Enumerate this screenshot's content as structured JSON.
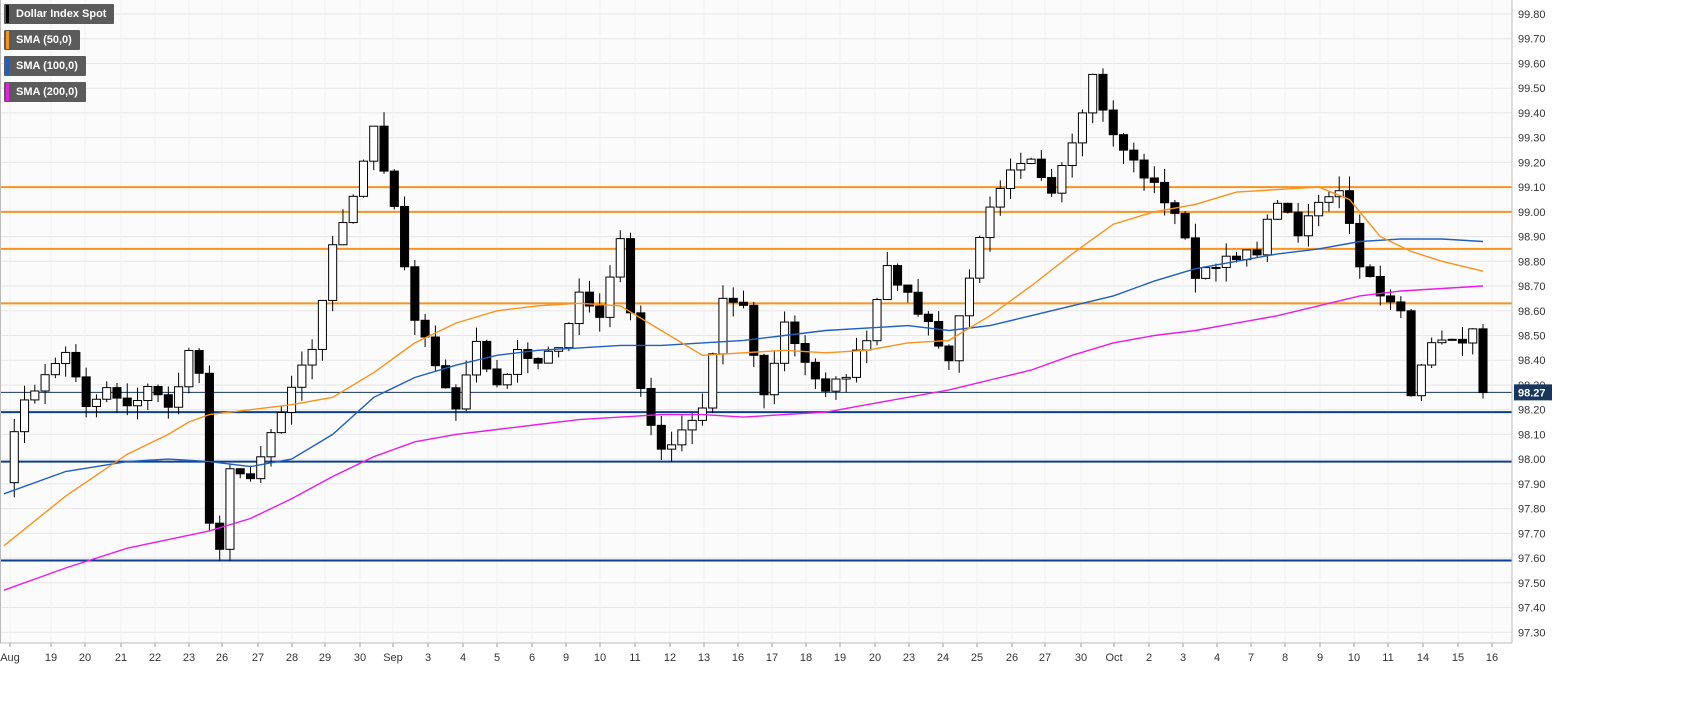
{
  "colors": {
    "background": "#ffffff",
    "grid": "#e6e6e6",
    "resistance": "#f7931e",
    "support": "#0d3f8f",
    "sma50": "#f7931e",
    "sma100": "#1f5fbf",
    "sma200": "#e61ee6",
    "candle_up": "#ffffff",
    "candle_down": "#000000",
    "badge": "#17375e"
  },
  "legend": [
    {
      "label": "Dollar Index Spot",
      "color": "#000000"
    },
    {
      "label": "SMA (50,0)",
      "color": "#f7931e"
    },
    {
      "label": "SMA (100,0)",
      "color": "#1f5fbf"
    },
    {
      "label": "SMA (200,0)",
      "color": "#e61ee6"
    }
  ],
  "chart_data": {
    "type": "candlestick",
    "title": "Dollar Index Spot",
    "y_ticks": [
      "99.80",
      "99.70",
      "99.60",
      "99.50",
      "99.40",
      "99.30",
      "99.20",
      "99.10",
      "99.00",
      "98.90",
      "98.80",
      "98.70",
      "98.60",
      "98.50",
      "98.40",
      "98.30",
      "98.20",
      "98.10",
      "98.00",
      "97.90",
      "97.80",
      "97.70",
      "97.60",
      "97.50",
      "97.40",
      "97.30"
    ],
    "x_ticks": [
      "Aug",
      "19",
      "20",
      "21",
      "22",
      "23",
      "26",
      "27",
      "28",
      "29",
      "30",
      "Sep",
      "3",
      "4",
      "5",
      "6",
      "9",
      "10",
      "11",
      "12",
      "13",
      "16",
      "17",
      "18",
      "19",
      "20",
      "23",
      "24",
      "25",
      "26",
      "27",
      "30",
      "Oct",
      "2",
      "3",
      "4",
      "7",
      "8",
      "9",
      "10",
      "11",
      "14",
      "15",
      "16"
    ],
    "current_price": "98.27",
    "ylim": [
      97.3,
      99.8
    ],
    "horizontal_levels": {
      "resistance": [
        99.1,
        99.0,
        98.85,
        98.63
      ],
      "support": [
        98.19,
        97.99,
        97.59
      ]
    },
    "anchors": [
      {
        "x": 0,
        "v": 97.93
      },
      {
        "x": 1,
        "v": 98.25
      },
      {
        "x": 2,
        "v": 98.33
      },
      {
        "x": 3,
        "v": 98.44
      },
      {
        "x": 4,
        "v": 98.2
      },
      {
        "x": 5,
        "v": 98.28
      },
      {
        "x": 6,
        "v": 98.2
      },
      {
        "x": 7,
        "v": 98.3
      },
      {
        "x": 8,
        "v": 98.2
      },
      {
        "x": 9,
        "v": 98.43
      },
      {
        "x": 9.8,
        "v": 98.3
      },
      {
        "x": 10,
        "v": 97.72
      },
      {
        "x": 10.5,
        "v": 97.62
      },
      {
        "x": 11,
        "v": 97.98
      },
      {
        "x": 12,
        "v": 97.9
      },
      {
        "x": 13,
        "v": 98.1
      },
      {
        "x": 14,
        "v": 98.27
      },
      {
        "x": 15,
        "v": 98.45
      },
      {
        "x": 16,
        "v": 98.85
      },
      {
        "x": 17,
        "v": 99.08
      },
      {
        "x": 18,
        "v": 99.35
      },
      {
        "x": 19,
        "v": 99.0
      },
      {
        "x": 20,
        "v": 98.55
      },
      {
        "x": 21,
        "v": 98.4
      },
      {
        "x": 22,
        "v": 98.2
      },
      {
        "x": 23,
        "v": 98.48
      },
      {
        "x": 24,
        "v": 98.28
      },
      {
        "x": 25,
        "v": 98.45
      },
      {
        "x": 26,
        "v": 98.38
      },
      {
        "x": 27,
        "v": 98.45
      },
      {
        "x": 28,
        "v": 98.68
      },
      {
        "x": 29,
        "v": 98.58
      },
      {
        "x": 30,
        "v": 98.9
      },
      {
        "x": 31,
        "v": 98.28
      },
      {
        "x": 32,
        "v": 98.02
      },
      {
        "x": 33,
        "v": 98.1
      },
      {
        "x": 34,
        "v": 98.2
      },
      {
        "x": 35,
        "v": 98.65
      },
      {
        "x": 36,
        "v": 98.6
      },
      {
        "x": 37,
        "v": 98.25
      },
      {
        "x": 38,
        "v": 98.55
      },
      {
        "x": 39,
        "v": 98.4
      },
      {
        "x": 40,
        "v": 98.26
      },
      {
        "x": 41,
        "v": 98.35
      },
      {
        "x": 42,
        "v": 98.5
      },
      {
        "x": 43,
        "v": 98.8
      },
      {
        "x": 44,
        "v": 98.65
      },
      {
        "x": 45,
        "v": 98.55
      },
      {
        "x": 46,
        "v": 98.4
      },
      {
        "x": 47,
        "v": 98.75
      },
      {
        "x": 48,
        "v": 99.0
      },
      {
        "x": 49,
        "v": 99.15
      },
      {
        "x": 50,
        "v": 99.2
      },
      {
        "x": 51,
        "v": 99.1
      },
      {
        "x": 52,
        "v": 99.3
      },
      {
        "x": 53,
        "v": 99.55
      },
      {
        "x": 54,
        "v": 99.3
      },
      {
        "x": 55,
        "v": 99.2
      },
      {
        "x": 56,
        "v": 99.1
      },
      {
        "x": 57,
        "v": 99.0
      },
      {
        "x": 58,
        "v": 98.75
      },
      {
        "x": 59,
        "v": 98.8
      },
      {
        "x": 60,
        "v": 98.8
      },
      {
        "x": 61,
        "v": 98.85
      },
      {
        "x": 62,
        "v": 99.05
      },
      {
        "x": 63,
        "v": 98.9
      },
      {
        "x": 64,
        "v": 99.05
      },
      {
        "x": 65,
        "v": 99.1
      },
      {
        "x": 66,
        "v": 98.8
      },
      {
        "x": 67,
        "v": 98.65
      },
      {
        "x": 68,
        "v": 98.6
      },
      {
        "x": 68.5,
        "v": 98.28
      },
      {
        "x": 69,
        "v": 98.4
      },
      {
        "x": 70,
        "v": 98.5
      },
      {
        "x": 71,
        "v": 98.45
      },
      {
        "x": 71.5,
        "v": 98.55
      },
      {
        "x": 72,
        "v": 98.25
      }
    ],
    "sma50": [
      {
        "x": 0,
        "v": 97.65
      },
      {
        "x": 3,
        "v": 97.85
      },
      {
        "x": 6,
        "v": 98.02
      },
      {
        "x": 8,
        "v": 98.1
      },
      {
        "x": 9,
        "v": 98.15
      },
      {
        "x": 10,
        "v": 98.18
      },
      {
        "x": 12,
        "v": 98.2
      },
      {
        "x": 14,
        "v": 98.22
      },
      {
        "x": 16,
        "v": 98.25
      },
      {
        "x": 18,
        "v": 98.35
      },
      {
        "x": 20,
        "v": 98.47
      },
      {
        "x": 22,
        "v": 98.55
      },
      {
        "x": 24,
        "v": 98.6
      },
      {
        "x": 26,
        "v": 98.62
      },
      {
        "x": 28,
        "v": 98.63
      },
      {
        "x": 30,
        "v": 98.62
      },
      {
        "x": 32,
        "v": 98.52
      },
      {
        "x": 34,
        "v": 98.42
      },
      {
        "x": 36,
        "v": 98.43
      },
      {
        "x": 38,
        "v": 98.44
      },
      {
        "x": 40,
        "v": 98.43
      },
      {
        "x": 42,
        "v": 98.44
      },
      {
        "x": 44,
        "v": 98.47
      },
      {
        "x": 46,
        "v": 98.48
      },
      {
        "x": 48,
        "v": 98.58
      },
      {
        "x": 50,
        "v": 98.7
      },
      {
        "x": 52,
        "v": 98.83
      },
      {
        "x": 54,
        "v": 98.95
      },
      {
        "x": 56,
        "v": 99.0
      },
      {
        "x": 58,
        "v": 99.03
      },
      {
        "x": 60,
        "v": 99.08
      },
      {
        "x": 62,
        "v": 99.09
      },
      {
        "x": 64,
        "v": 99.1
      },
      {
        "x": 65.5,
        "v": 99.05
      },
      {
        "x": 67,
        "v": 98.9
      },
      {
        "x": 68.5,
        "v": 98.84
      },
      {
        "x": 70,
        "v": 98.8
      },
      {
        "x": 72,
        "v": 98.76
      }
    ],
    "sma100": [
      {
        "x": 0,
        "v": 97.86
      },
      {
        "x": 3,
        "v": 97.95
      },
      {
        "x": 6,
        "v": 97.99
      },
      {
        "x": 8,
        "v": 98.0
      },
      {
        "x": 10,
        "v": 97.99
      },
      {
        "x": 12,
        "v": 97.97
      },
      {
        "x": 14,
        "v": 98.0
      },
      {
        "x": 16,
        "v": 98.1
      },
      {
        "x": 18,
        "v": 98.25
      },
      {
        "x": 20,
        "v": 98.33
      },
      {
        "x": 22,
        "v": 98.38
      },
      {
        "x": 24,
        "v": 98.42
      },
      {
        "x": 26,
        "v": 98.44
      },
      {
        "x": 28,
        "v": 98.45
      },
      {
        "x": 30,
        "v": 98.46
      },
      {
        "x": 32,
        "v": 98.46
      },
      {
        "x": 34,
        "v": 98.47
      },
      {
        "x": 36,
        "v": 98.48
      },
      {
        "x": 38,
        "v": 98.5
      },
      {
        "x": 40,
        "v": 98.52
      },
      {
        "x": 42,
        "v": 98.53
      },
      {
        "x": 44,
        "v": 98.54
      },
      {
        "x": 46,
        "v": 98.52
      },
      {
        "x": 48,
        "v": 98.54
      },
      {
        "x": 50,
        "v": 98.58
      },
      {
        "x": 52,
        "v": 98.62
      },
      {
        "x": 54,
        "v": 98.66
      },
      {
        "x": 56,
        "v": 98.72
      },
      {
        "x": 58,
        "v": 98.77
      },
      {
        "x": 60,
        "v": 98.8
      },
      {
        "x": 62,
        "v": 98.83
      },
      {
        "x": 64,
        "v": 98.85
      },
      {
        "x": 66,
        "v": 98.88
      },
      {
        "x": 68,
        "v": 98.89
      },
      {
        "x": 70,
        "v": 98.89
      },
      {
        "x": 72,
        "v": 98.88
      }
    ],
    "sma200": [
      {
        "x": 0,
        "v": 97.47
      },
      {
        "x": 3,
        "v": 97.56
      },
      {
        "x": 6,
        "v": 97.64
      },
      {
        "x": 10,
        "v": 97.71
      },
      {
        "x": 12,
        "v": 97.76
      },
      {
        "x": 14,
        "v": 97.84
      },
      {
        "x": 16,
        "v": 97.93
      },
      {
        "x": 18,
        "v": 98.01
      },
      {
        "x": 20,
        "v": 98.07
      },
      {
        "x": 22,
        "v": 98.1
      },
      {
        "x": 24,
        "v": 98.12
      },
      {
        "x": 26,
        "v": 98.14
      },
      {
        "x": 28,
        "v": 98.16
      },
      {
        "x": 30,
        "v": 98.17
      },
      {
        "x": 32,
        "v": 98.18
      },
      {
        "x": 34,
        "v": 98.18
      },
      {
        "x": 36,
        "v": 98.17
      },
      {
        "x": 38,
        "v": 98.18
      },
      {
        "x": 40,
        "v": 98.19
      },
      {
        "x": 42,
        "v": 98.22
      },
      {
        "x": 44,
        "v": 98.25
      },
      {
        "x": 46,
        "v": 98.28
      },
      {
        "x": 48,
        "v": 98.32
      },
      {
        "x": 50,
        "v": 98.36
      },
      {
        "x": 52,
        "v": 98.42
      },
      {
        "x": 54,
        "v": 98.47
      },
      {
        "x": 56,
        "v": 98.5
      },
      {
        "x": 58,
        "v": 98.52
      },
      {
        "x": 60,
        "v": 98.55
      },
      {
        "x": 62,
        "v": 98.58
      },
      {
        "x": 64,
        "v": 98.62
      },
      {
        "x": 66,
        "v": 98.66
      },
      {
        "x": 68,
        "v": 98.68
      },
      {
        "x": 70,
        "v": 98.69
      },
      {
        "x": 72,
        "v": 98.7
      }
    ]
  }
}
